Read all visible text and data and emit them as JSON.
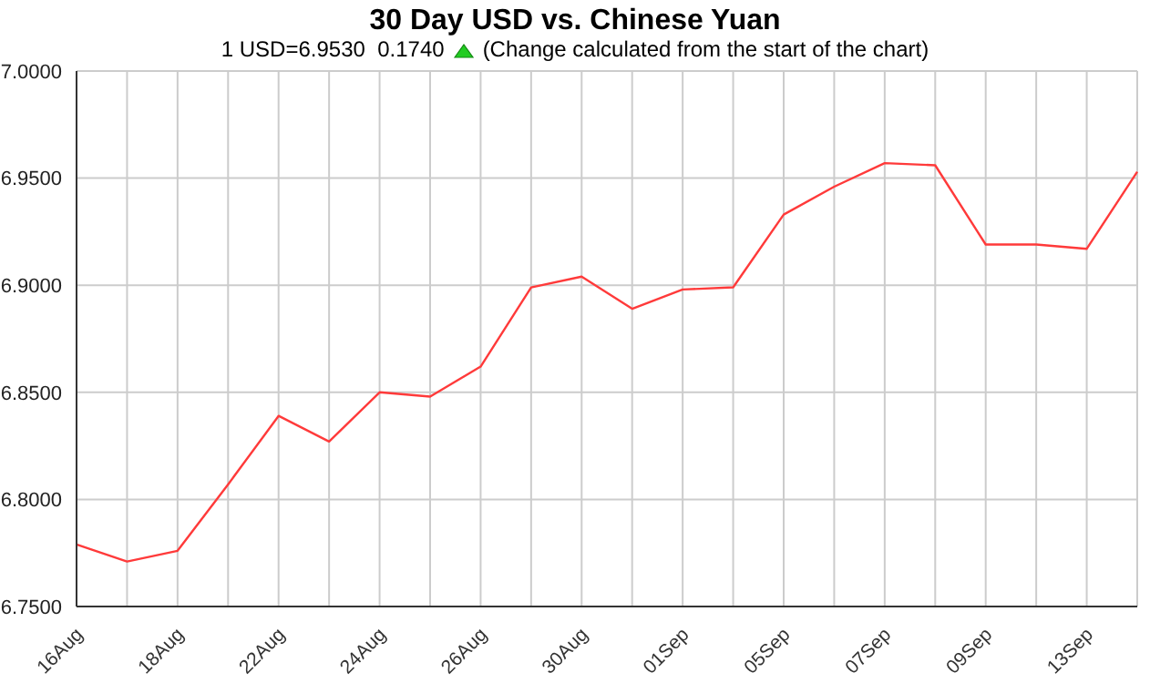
{
  "chart_data": {
    "type": "line",
    "title": "30 Day USD vs. Chinese Yuan",
    "subtitle": "1 USD=6.9530  0.1740",
    "annotations": [
      "(Change calculated from the start of the chart)"
    ],
    "categories": [
      "16Aug",
      null,
      "18Aug",
      null,
      "22Aug",
      null,
      "24Aug",
      null,
      "26Aug",
      null,
      "30Aug",
      null,
      "01Sep",
      null,
      "05Sep",
      null,
      "07Sep",
      null,
      "09Sep",
      null,
      "13Sep",
      null
    ],
    "series": [
      {
        "color": "#ff3a3a",
        "values": [
          6.779,
          6.771,
          6.776,
          6.807,
          6.839,
          6.827,
          6.85,
          6.848,
          6.862,
          6.899,
          6.904,
          6.889,
          6.898,
          6.899,
          6.933,
          6.946,
          6.957,
          6.956,
          6.919,
          6.919,
          6.917,
          6.953
        ]
      }
    ],
    "ylim": [
      6.75,
      7.0
    ],
    "yticks": [
      {
        "value": 6.75,
        "label": "6.7500"
      },
      {
        "value": 6.8,
        "label": "6.8000"
      },
      {
        "value": 6.85,
        "label": "6.8500"
      },
      {
        "value": 6.9,
        "label": "6.9000"
      },
      {
        "value": 6.95,
        "label": "6.9500"
      },
      {
        "value": 7.0,
        "label": "7.0000"
      }
    ],
    "grid": true,
    "marker": "none",
    "line_style": "solid"
  }
}
